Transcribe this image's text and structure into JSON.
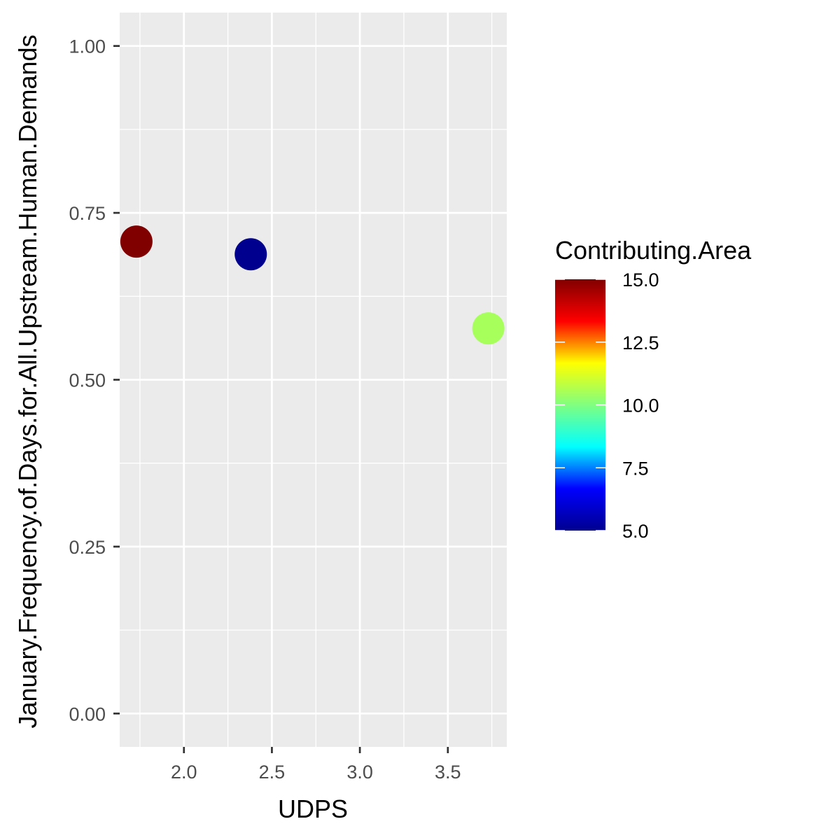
{
  "chart_data": {
    "type": "scatter",
    "xlabel": "UDPS",
    "ylabel": "January.Frequency.of.Days.for.All.Upstream.Human.Demands",
    "xlim": [
      1.635,
      3.835
    ],
    "ylim": [
      -0.05,
      1.05
    ],
    "x_ticks": [
      "2.0",
      "2.5",
      "3.0",
      "3.5"
    ],
    "x_tick_values": [
      2.0,
      2.5,
      3.0,
      3.5
    ],
    "y_ticks": [
      "0.00",
      "0.25",
      "0.50",
      "0.75",
      "1.00"
    ],
    "y_tick_values": [
      0.0,
      0.25,
      0.5,
      0.75,
      1.0
    ],
    "grid": true,
    "points": [
      {
        "x": 1.73,
        "y": 0.707,
        "color_value": 15.0
      },
      {
        "x": 2.38,
        "y": 0.688,
        "color_value": 5.0
      },
      {
        "x": 3.73,
        "y": 0.577,
        "color_value": 10.5
      }
    ],
    "legend": {
      "title": "Contributing.Area",
      "position": "right",
      "colorbar_range": [
        5.0,
        15.0
      ],
      "labels": [
        "15.0",
        "12.5",
        "10.0",
        "7.5",
        "5.0"
      ],
      "label_values": [
        15.0,
        12.5,
        10.0,
        7.5,
        5.0
      ],
      "colors": [
        "#00008F",
        "#0000FF",
        "#00FFFF",
        "#80FF80",
        "#FFFF00",
        "#FF0000",
        "#800000"
      ]
    },
    "panel_background": "#EBEBEB",
    "gridline_color": "#FFFFFF"
  }
}
